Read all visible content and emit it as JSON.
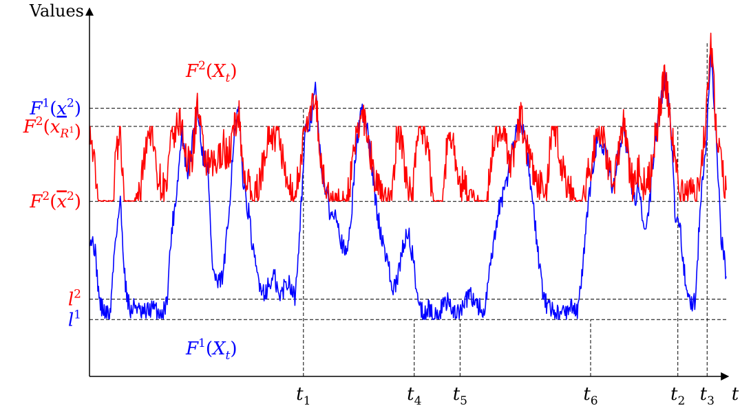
{
  "chart_data": {
    "type": "line",
    "ylabel": "Values",
    "xlabel": "t",
    "colors": {
      "F1": "#0000ff",
      "F2": "#ff0000",
      "axis": "#000000"
    },
    "series": [
      {
        "name": "F1(Xt)",
        "label": {
          "main": "F",
          "sup": "1",
          "arg": "X",
          "argsub": "t"
        },
        "color": "#0000ff",
        "values": [
          0.4,
          0.35,
          0.1,
          0.06,
          0.05,
          0.38,
          0.55,
          0.18,
          0.06,
          0.1,
          0.05,
          0.06,
          0.08,
          0.07,
          0.06,
          0.1,
          0.42,
          0.6,
          0.85,
          0.66,
          0.8,
          0.98,
          0.76,
          0.7,
          0.25,
          0.18,
          0.22,
          0.45,
          0.8,
          0.95,
          0.62,
          0.5,
          0.3,
          0.2,
          0.15,
          0.18,
          0.22,
          0.12,
          0.18,
          0.2,
          0.12,
          0.45,
          0.84,
          0.9,
          1.05,
          0.72,
          0.6,
          0.48,
          0.52,
          0.38,
          0.3,
          0.5,
          0.8,
          0.95,
          0.88,
          0.7,
          0.5,
          0.38,
          0.3,
          0.15,
          0.2,
          0.35,
          0.42,
          0.3,
          0.12,
          0.05,
          0.08,
          0.04,
          0.05,
          0.1,
          0.12,
          0.06,
          0.05,
          0.1,
          0.14,
          0.12,
          0.08,
          0.06,
          0.25,
          0.4,
          0.55,
          0.6,
          0.75,
          0.85,
          0.92,
          0.8,
          0.6,
          0.4,
          0.18,
          0.1,
          0.08,
          0.06,
          0.05,
          0.07,
          0.1,
          0.05,
          0.25,
          0.5,
          0.7,
          0.85,
          0.8,
          0.7,
          0.6,
          0.75,
          0.9,
          0.72,
          0.55,
          0.62,
          0.4,
          0.52,
          0.8,
          0.95,
          1.1,
          0.96,
          0.5,
          0.45,
          0.2,
          0.1,
          0.12,
          0.55,
          0.75,
          1.2,
          0.85,
          0.4,
          0.22
        ]
      },
      {
        "name": "F2(Xt)",
        "label": {
          "main": "F",
          "sup": "2",
          "arg": "X",
          "argsub": "t"
        },
        "color": "#ff0000",
        "values": [
          0.88,
          0.7,
          0.52,
          0.2,
          0.15,
          0.7,
          0.88,
          0.4,
          0.3,
          0.55,
          0.6,
          0.82,
          0.88,
          0.7,
          0.62,
          0.6,
          0.82,
          0.88,
          0.9,
          0.7,
          0.75,
          0.98,
          0.78,
          0.7,
          0.7,
          0.72,
          0.8,
          0.74,
          0.85,
          0.95,
          0.68,
          0.62,
          0.55,
          0.62,
          0.75,
          0.88,
          0.82,
          0.85,
          0.65,
          0.6,
          0.55,
          0.72,
          0.88,
          0.9,
          1.05,
          0.72,
          0.6,
          0.55,
          0.52,
          0.55,
          0.55,
          0.66,
          0.84,
          0.95,
          0.88,
          0.72,
          0.62,
          0.56,
          0.56,
          0.6,
          0.88,
          0.78,
          0.6,
          0.62,
          0.88,
          0.88,
          0.75,
          0.55,
          0.42,
          0.62,
          0.88,
          0.8,
          0.6,
          0.65,
          0.58,
          0.55,
          0.48,
          0.38,
          0.7,
          0.84,
          0.88,
          0.82,
          0.72,
          0.8,
          0.92,
          0.8,
          0.7,
          0.64,
          0.62,
          0.56,
          0.88,
          0.85,
          0.7,
          0.62,
          0.6,
          0.42,
          0.55,
          0.65,
          0.75,
          0.88,
          0.85,
          0.7,
          0.6,
          0.75,
          0.9,
          0.72,
          0.6,
          0.7,
          0.62,
          0.65,
          0.8,
          0.95,
          1.1,
          0.96,
          0.72,
          0.6,
          0.55,
          0.58,
          0.56,
          0.7,
          0.88,
          1.25,
          0.9,
          0.7,
          0.6
        ]
      }
    ],
    "levels": [
      {
        "name": "F1(x2)",
        "value": 0.96,
        "color": "#0000ff",
        "label": {
          "main": "F",
          "sup": "1",
          "arg": "x",
          "argsup": "2",
          "mark": "under"
        }
      },
      {
        "name": "F2(xR1)",
        "value": 0.88,
        "color": "#ff0000",
        "label": {
          "main": "F",
          "sup": "2",
          "arg": "x",
          "argsub": "R",
          "argsubsup": "1"
        }
      },
      {
        "name": "F2(x2)",
        "value": 0.55,
        "color": "#ff0000",
        "label": {
          "main": "F",
          "sup": "2",
          "arg": "x",
          "argsup": "2",
          "mark": "over"
        }
      },
      {
        "name": "l2",
        "value": 0.12,
        "color": "#ff0000",
        "label": {
          "main": "l",
          "sup": "2"
        }
      },
      {
        "name": "l1",
        "value": 0.03,
        "color": "#0000ff",
        "label": {
          "main": "l",
          "sup": "1"
        }
      }
    ],
    "events": [
      {
        "label": "t1",
        "main": "t",
        "sub": "1",
        "t": 0.336,
        "level": 0.96
      },
      {
        "label": "t4",
        "main": "t",
        "sub": "4",
        "t": 0.51,
        "level": 0.03
      },
      {
        "label": "t5",
        "main": "t",
        "sub": "5",
        "t": 0.582,
        "level": 0.03
      },
      {
        "label": "t6",
        "main": "t",
        "sub": "6",
        "t": 0.787,
        "level": 0.03
      },
      {
        "label": "t2",
        "main": "t",
        "sub": "2",
        "t": 0.924,
        "level": 0.88
      },
      {
        "label": "t3",
        "main": "t",
        "sub": "3",
        "t": 0.97,
        "level": 1.25
      }
    ],
    "ylim": [
      -0.22,
      1.4
    ],
    "xlim": [
      0,
      1
    ],
    "grid": false
  }
}
